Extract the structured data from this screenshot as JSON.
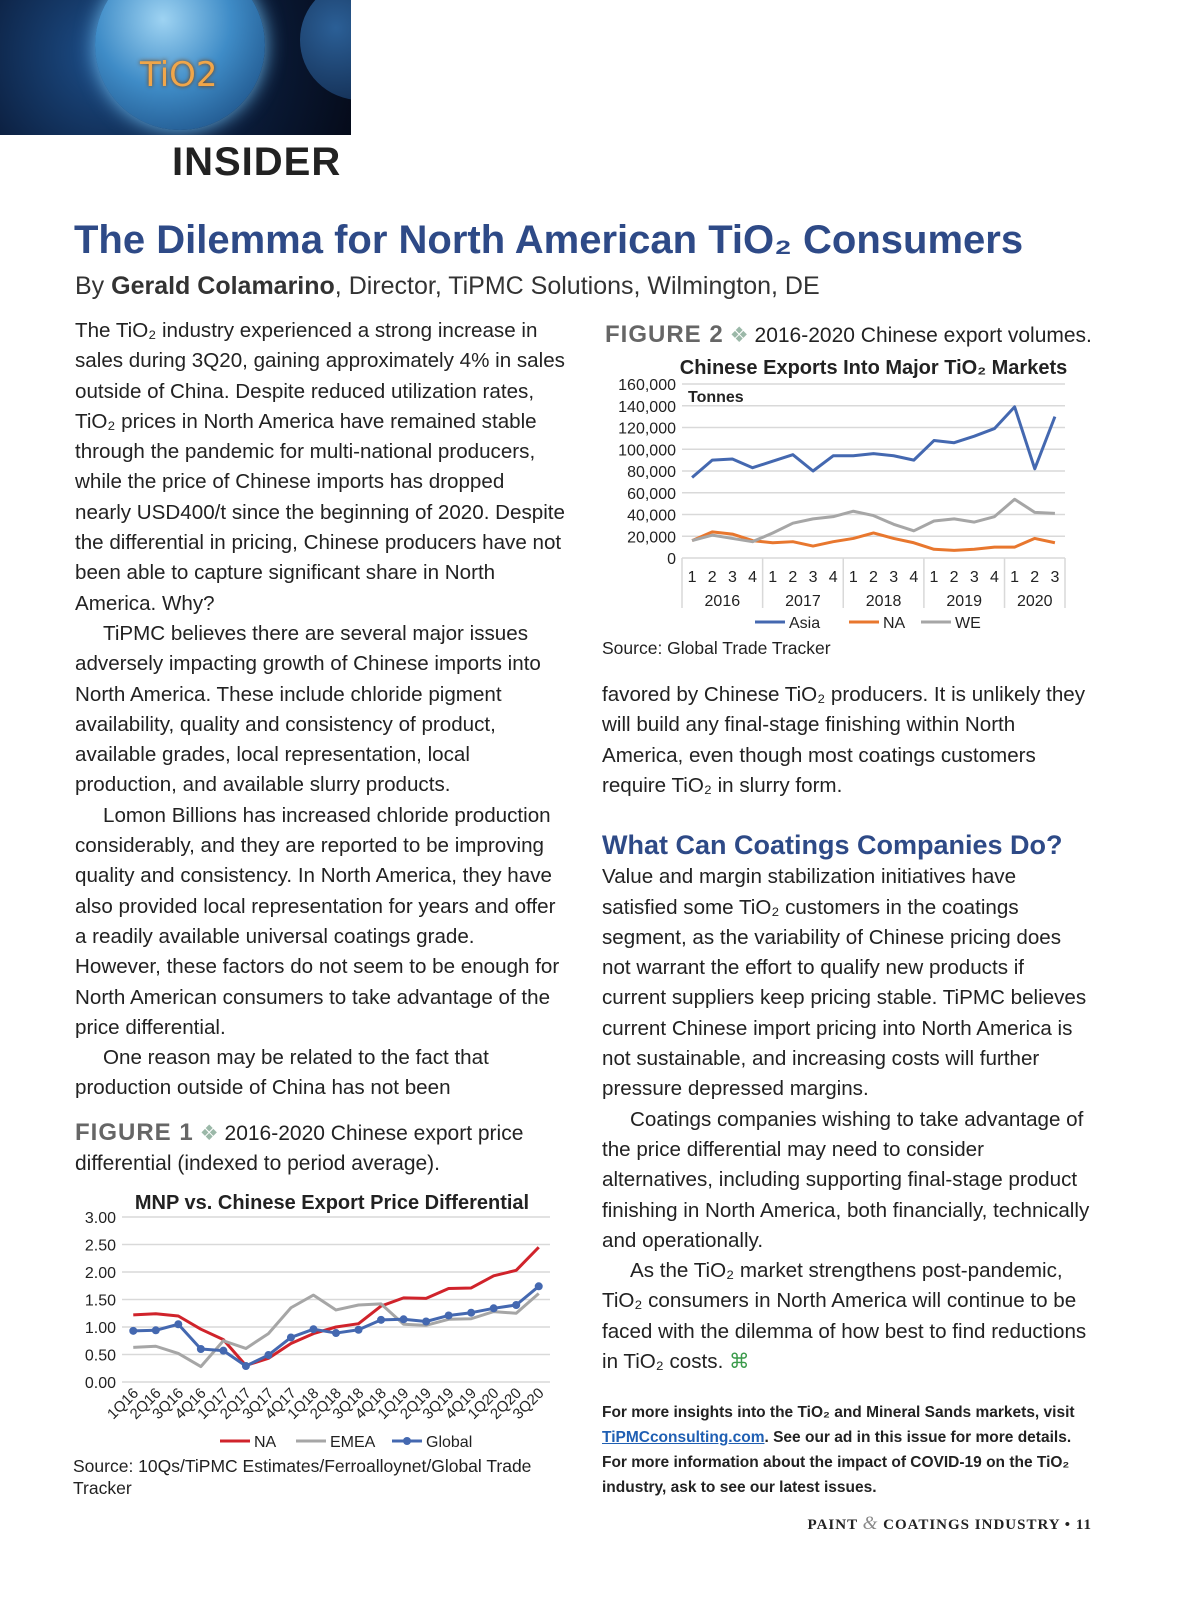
{
  "header": {
    "image_text": "TiO2",
    "section": "INSIDER"
  },
  "article": {
    "title": "The Dilemma for North American TiO₂ Consumers",
    "byline_prefix": "By ",
    "author": "Gerald Colamarino",
    "byline_suffix": ", Director, TiPMC Solutions, Wilmington, DE",
    "left_paragraphs": [
      "The TiO₂ industry experienced a strong increase in sales during 3Q20, gaining approximately 4% in sales outside of China. Despite reduced utilization rates, TiO₂ prices in North America have remained stable through the pandemic for multi-national producers, while the price of Chinese imports has dropped nearly USD400/t since the beginning of 2020. Despite the differential in pricing, Chinese producers have not been able to capture significant share in North America. Why?",
      "TiPMC believes there are several major issues adversely impacting growth of Chinese imports into North America. These include chloride pigment availability, quality and consistency of product, available grades, local representation, local production, and available slurry products.",
      "Lomon Billions has increased chloride production considerably, and they are reported to be improving quality and consistency. In North America, they have also provided local representation for years and offer a readily available universal coatings grade. However, these factors do not seem to be enough for North American consumers to take advantage of the price differential.",
      "One reason may be related to the fact that production outside of China has not been"
    ],
    "right_top_paragraph": "favored by Chinese TiO₂ producers. It is unlikely they will build any final-stage finishing within North America, even though most coatings customers require TiO₂ in slurry form.",
    "subhead": "What Can Coatings Companies Do?",
    "right_paragraphs": [
      "Value and margin stabilization initiatives have satisfied some TiO₂ customers in the coatings segment, as the variability of Chinese pricing does not warrant the effort to qualify new products if current suppliers keep pricing stable. TiPMC believes current Chinese import pricing into North America is not sustainable, and increasing costs will further pressure depressed margins.",
      "Coatings companies wishing to take advantage of the price differential may need to consider alternatives, including supporting final-stage product finishing in North America, both financially, technically and operationally.",
      "As the TiO₂ market strengthens post-pandemic, TiO₂ consumers in North America will continue to be faced with the dilemma of how best to find reductions in TiO₂ costs."
    ],
    "end_mark": "⌘",
    "more_1": "For more insights into the TiO₂ and Mineral Sands markets, visit ",
    "more_link": "TiPMCconsulting.com",
    "more_2": ". See our ad in this issue for more details. For more information about the impact of COVID-19 on the TiO₂ industry, ask to see our latest issues."
  },
  "figure1": {
    "label": "FIGURE 1",
    "caption": "2016-2020 Chinese export price differential (indexed to period average).",
    "source": "Source: 10Qs/TiPMC Estimates/Ferroalloynet/Global Trade Tracker"
  },
  "figure2": {
    "label": "FIGURE 2",
    "caption": "2016-2020 Chinese export volumes.",
    "source": "Source: Global Trade Tracker"
  },
  "footer": {
    "magazine_1": "PAINT ",
    "amp": "&",
    "magazine_2": " COATINGS INDUSTRY",
    "bullet": "•",
    "page": "11"
  },
  "chart_data": [
    {
      "type": "line",
      "title": "MNP vs. Chinese Export Price Differential",
      "ylim": [
        0,
        3
      ],
      "yticks": [
        "0.00",
        "0.50",
        "1.00",
        "1.50",
        "2.00",
        "2.50",
        "3.00"
      ],
      "grid": true,
      "legend": "bottom",
      "categories": [
        "1Q16",
        "2Q16",
        "3Q16",
        "4Q16",
        "1Q17",
        "2Q17",
        "3Q17",
        "4Q17",
        "1Q18",
        "2Q18",
        "3Q18",
        "4Q18",
        "1Q19",
        "2Q19",
        "3Q19",
        "4Q19",
        "1Q20",
        "2Q20",
        "3Q20"
      ],
      "series": [
        {
          "name": "NA",
          "color": "#d0232b",
          "markers": false,
          "values": [
            1.22,
            1.24,
            1.2,
            0.96,
            0.77,
            0.3,
            0.43,
            0.7,
            0.88,
            1.0,
            1.06,
            1.38,
            1.53,
            1.52,
            1.7,
            1.71,
            1.93,
            2.03,
            2.45
          ]
        },
        {
          "name": "EMEA",
          "color": "#a6a6a6",
          "markers": false,
          "values": [
            0.63,
            0.65,
            0.52,
            0.28,
            0.75,
            0.61,
            0.88,
            1.35,
            1.58,
            1.31,
            1.4,
            1.42,
            1.05,
            1.03,
            1.14,
            1.15,
            1.28,
            1.25,
            1.61
          ]
        },
        {
          "name": "Global",
          "color": "#4468b0",
          "markers": true,
          "values": [
            0.93,
            0.94,
            1.05,
            0.6,
            0.57,
            0.29,
            0.49,
            0.81,
            0.96,
            0.89,
            0.95,
            1.13,
            1.14,
            1.1,
            1.21,
            1.26,
            1.34,
            1.4,
            1.74
          ]
        }
      ]
    },
    {
      "type": "line",
      "title": "Chinese Exports Into Major TiO₂ Markets",
      "ylabel": "Tonnes",
      "ylim": [
        0,
        160000
      ],
      "yticks": [
        "0",
        "20,000",
        "40,000",
        "60,000",
        "80,000",
        "100,000",
        "120,000",
        "140,000",
        "160,000"
      ],
      "grid": true,
      "legend": "bottom",
      "quarters": [
        "1",
        "2",
        "3",
        "4",
        "1",
        "2",
        "3",
        "4",
        "1",
        "2",
        "3",
        "4",
        "1",
        "2",
        "3",
        "4",
        "1",
        "2",
        "3"
      ],
      "years": [
        "2016",
        "2017",
        "2018",
        "2019",
        "2020"
      ],
      "series": [
        {
          "name": "Asia",
          "color": "#4468b0",
          "values": [
            74000,
            90000,
            91000,
            83000,
            89000,
            95000,
            80000,
            94000,
            94000,
            96000,
            94000,
            90000,
            108000,
            106000,
            112000,
            119000,
            139000,
            82000,
            130000
          ]
        },
        {
          "name": "NA",
          "color": "#e8772e",
          "values": [
            16000,
            24000,
            22000,
            16000,
            14000,
            15000,
            11000,
            15000,
            18000,
            23000,
            18000,
            14000,
            8000,
            7000,
            8000,
            10000,
            10000,
            18000,
            14000
          ]
        },
        {
          "name": "WE",
          "color": "#a6a6a6",
          "values": [
            16000,
            21000,
            18000,
            15000,
            23000,
            32000,
            36000,
            38000,
            43000,
            39000,
            31000,
            25000,
            34000,
            36000,
            33000,
            38000,
            54000,
            42000,
            41000
          ]
        }
      ]
    }
  ]
}
